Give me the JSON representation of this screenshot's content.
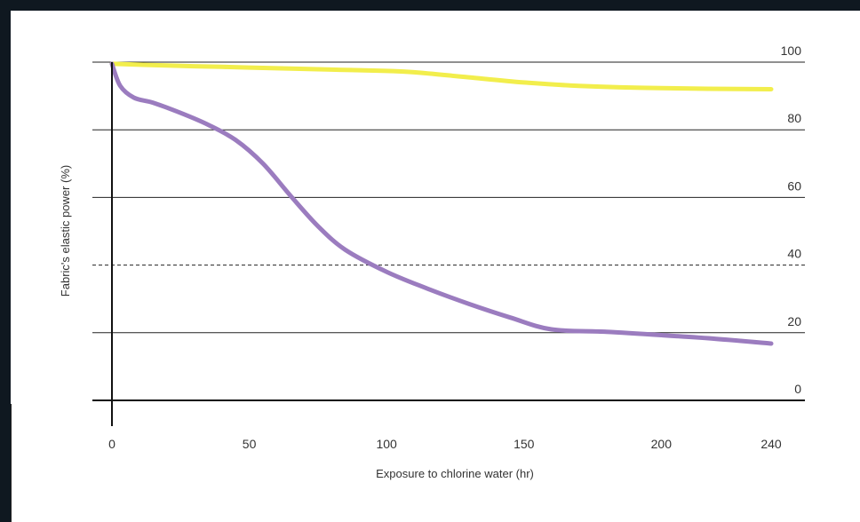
{
  "chart_data": {
    "type": "line",
    "title": "",
    "xlabel": "Exposure to chlorine water (hr)",
    "ylabel": "Fabric's elastic power (%)",
    "xlim": [
      0,
      240
    ],
    "ylim": [
      0,
      100
    ],
    "x_ticks": [
      {
        "value": 0,
        "label": "0"
      },
      {
        "value": 50,
        "label": "50"
      },
      {
        "value": 100,
        "label": "100"
      },
      {
        "value": 150,
        "label": "150"
      },
      {
        "value": 200,
        "label": "200"
      },
      {
        "value": 240,
        "label": "240"
      }
    ],
    "y_ticks": [
      {
        "value": 0,
        "label": "0"
      },
      {
        "value": 20,
        "label": "20"
      },
      {
        "value": 40,
        "label": "40"
      },
      {
        "value": 60,
        "label": "60"
      },
      {
        "value": 80,
        "label": "80"
      },
      {
        "value": 100,
        "label": "100"
      }
    ],
    "dashed_gridline_at": 40,
    "y_tick_position": "right",
    "grid": true,
    "legend": "none",
    "series": [
      {
        "color": "#f2ee4c",
        "x": [
          0,
          20,
          40,
          60,
          80,
          100,
          110,
          130,
          150,
          170,
          200,
          240
        ],
        "y": [
          99.5,
          99,
          98.6,
          98.2,
          97.8,
          97.4,
          97,
          95.5,
          94,
          93,
          92.3,
          92
        ]
      },
      {
        "color": "#9b7cbf",
        "x": [
          0,
          3,
          8,
          15,
          25,
          35,
          45,
          55,
          65,
          75,
          85,
          100,
          115,
          130,
          145,
          160,
          180,
          200,
          220,
          240
        ],
        "y": [
          99.5,
          93,
          89.5,
          88,
          85,
          81.5,
          77,
          70,
          60.5,
          51.5,
          44.5,
          38,
          33,
          28.5,
          24.5,
          21,
          20.3,
          19.3,
          18.2,
          16.8
        ]
      }
    ]
  }
}
